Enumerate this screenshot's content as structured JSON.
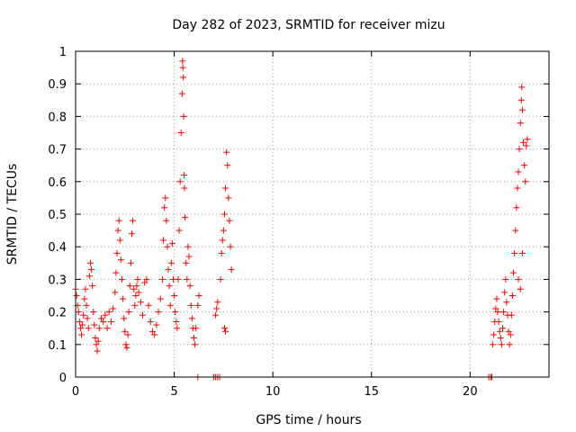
{
  "chart_data": {
    "type": "scatter",
    "title": "Day 282 of 2023, SRMTID for receiver mizu",
    "xlabel": "GPS time / hours",
    "ylabel": "SRMTID / TECUs",
    "xlim": [
      0,
      24
    ],
    "ylim": [
      0,
      1
    ],
    "xticks": [
      0,
      5,
      10,
      15,
      20
    ],
    "xtick_labels": [
      "0",
      "5",
      "10",
      "15",
      "20"
    ],
    "yticks": [
      0,
      0.1,
      0.2,
      0.3,
      0.4,
      0.5,
      0.6,
      0.7,
      0.8,
      0.9,
      1
    ],
    "ytick_labels": [
      "0",
      "0.1",
      "0.2",
      "0.3",
      "0.4",
      "0.5",
      "0.6",
      "0.7",
      "0.8",
      "0.9",
      "1"
    ],
    "grid": true,
    "marker": "+",
    "color": "#ff0000",
    "series": [
      {
        "name": "SRMTID",
        "points": [
          [
            0.0,
            0.27
          ],
          [
            0.05,
            0.25
          ],
          [
            0.1,
            0.22
          ],
          [
            0.15,
            0.2
          ],
          [
            0.2,
            0.17
          ],
          [
            0.25,
            0.15
          ],
          [
            0.3,
            0.13
          ],
          [
            0.35,
            0.16
          ],
          [
            0.4,
            0.19
          ],
          [
            0.45,
            0.24
          ],
          [
            0.5,
            0.27
          ],
          [
            0.55,
            0.22
          ],
          [
            0.6,
            0.18
          ],
          [
            0.65,
            0.15
          ],
          [
            0.7,
            0.31
          ],
          [
            0.75,
            0.35
          ],
          [
            0.8,
            0.33
          ],
          [
            0.85,
            0.28
          ],
          [
            0.9,
            0.2
          ],
          [
            0.95,
            0.16
          ],
          [
            1.0,
            0.12
          ],
          [
            1.05,
            0.1
          ],
          [
            1.1,
            0.08
          ],
          [
            1.15,
            0.11
          ],
          [
            1.2,
            0.15
          ],
          [
            1.3,
            0.18
          ],
          [
            1.4,
            0.17
          ],
          [
            1.5,
            0.19
          ],
          [
            1.6,
            0.15
          ],
          [
            1.7,
            0.2
          ],
          [
            1.8,
            0.17
          ],
          [
            1.9,
            0.21
          ],
          [
            2.0,
            0.26
          ],
          [
            2.05,
            0.32
          ],
          [
            2.1,
            0.38
          ],
          [
            2.15,
            0.45
          ],
          [
            2.2,
            0.48
          ],
          [
            2.25,
            0.42
          ],
          [
            2.3,
            0.36
          ],
          [
            2.35,
            0.3
          ],
          [
            2.4,
            0.24
          ],
          [
            2.45,
            0.18
          ],
          [
            2.5,
            0.14
          ],
          [
            2.55,
            0.1
          ],
          [
            2.6,
            0.09
          ],
          [
            2.65,
            0.13
          ],
          [
            2.7,
            0.2
          ],
          [
            2.75,
            0.28
          ],
          [
            2.8,
            0.35
          ],
          [
            2.85,
            0.44
          ],
          [
            2.9,
            0.48
          ],
          [
            2.95,
            0.27
          ],
          [
            3.0,
            0.22
          ],
          [
            3.05,
            0.25
          ],
          [
            3.1,
            0.28
          ],
          [
            3.15,
            0.3
          ],
          [
            3.2,
            0.26
          ],
          [
            3.3,
            0.23
          ],
          [
            3.4,
            0.19
          ],
          [
            3.5,
            0.29
          ],
          [
            3.6,
            0.3
          ],
          [
            3.7,
            0.22
          ],
          [
            3.8,
            0.17
          ],
          [
            3.9,
            0.14
          ],
          [
            4.0,
            0.13
          ],
          [
            4.1,
            0.16
          ],
          [
            4.2,
            0.2
          ],
          [
            4.3,
            0.24
          ],
          [
            4.4,
            0.3
          ],
          [
            4.45,
            0.42
          ],
          [
            4.5,
            0.52
          ],
          [
            4.55,
            0.55
          ],
          [
            4.6,
            0.48
          ],
          [
            4.65,
            0.4
          ],
          [
            4.7,
            0.33
          ],
          [
            4.75,
            0.28
          ],
          [
            4.8,
            0.22
          ],
          [
            4.85,
            0.35
          ],
          [
            4.9,
            0.41
          ],
          [
            4.95,
            0.3
          ],
          [
            5.0,
            0.25
          ],
          [
            5.05,
            0.2
          ],
          [
            5.1,
            0.17
          ],
          [
            5.15,
            0.15
          ],
          [
            5.2,
            0.3
          ],
          [
            5.25,
            0.45
          ],
          [
            5.3,
            0.6
          ],
          [
            5.35,
            0.75
          ],
          [
            5.4,
            0.87
          ],
          [
            5.42,
            0.97
          ],
          [
            5.44,
            0.95
          ],
          [
            5.46,
            0.92
          ],
          [
            5.48,
            0.8
          ],
          [
            5.5,
            0.62
          ],
          [
            5.52,
            0.58
          ],
          [
            5.55,
            0.49
          ],
          [
            5.6,
            0.35
          ],
          [
            5.65,
            0.3
          ],
          [
            5.7,
            0.4
          ],
          [
            5.75,
            0.37
          ],
          [
            5.8,
            0.28
          ],
          [
            5.85,
            0.22
          ],
          [
            5.9,
            0.18
          ],
          [
            5.95,
            0.15
          ],
          [
            6.0,
            0.12
          ],
          [
            6.05,
            0.1
          ],
          [
            6.1,
            0.15
          ],
          [
            6.2,
            0.22
          ],
          [
            6.25,
            0.25
          ],
          [
            6.2,
            0.0
          ],
          [
            7.0,
            0.0
          ],
          [
            7.1,
            0.0
          ],
          [
            7.2,
            0.0
          ],
          [
            7.3,
            0.0
          ],
          [
            7.1,
            0.19
          ],
          [
            7.15,
            0.21
          ],
          [
            7.2,
            0.23
          ],
          [
            7.35,
            0.3
          ],
          [
            7.4,
            0.38
          ],
          [
            7.45,
            0.42
          ],
          [
            7.5,
            0.45
          ],
          [
            7.55,
            0.5
          ],
          [
            7.6,
            0.58
          ],
          [
            7.65,
            0.69
          ],
          [
            7.7,
            0.65
          ],
          [
            7.75,
            0.55
          ],
          [
            7.8,
            0.48
          ],
          [
            7.85,
            0.4
          ],
          [
            7.9,
            0.33
          ],
          [
            7.55,
            0.15
          ],
          [
            7.6,
            0.14
          ],
          [
            20.95,
            0.0
          ],
          [
            21.05,
            0.0
          ],
          [
            21.1,
            0.0
          ],
          [
            21.15,
            0.1
          ],
          [
            21.2,
            0.13
          ],
          [
            21.25,
            0.17
          ],
          [
            21.3,
            0.21
          ],
          [
            21.35,
            0.24
          ],
          [
            21.4,
            0.2
          ],
          [
            21.45,
            0.17
          ],
          [
            21.5,
            0.14
          ],
          [
            21.55,
            0.12
          ],
          [
            21.6,
            0.1
          ],
          [
            21.65,
            0.15
          ],
          [
            21.7,
            0.2
          ],
          [
            21.75,
            0.26
          ],
          [
            21.8,
            0.3
          ],
          [
            21.85,
            0.23
          ],
          [
            21.9,
            0.19
          ],
          [
            21.95,
            0.14
          ],
          [
            22.0,
            0.1
          ],
          [
            22.05,
            0.13
          ],
          [
            22.1,
            0.19
          ],
          [
            22.15,
            0.25
          ],
          [
            22.2,
            0.32
          ],
          [
            22.25,
            0.38
          ],
          [
            22.3,
            0.45
          ],
          [
            22.35,
            0.52
          ],
          [
            22.4,
            0.58
          ],
          [
            22.45,
            0.63
          ],
          [
            22.5,
            0.7
          ],
          [
            22.55,
            0.78
          ],
          [
            22.6,
            0.85
          ],
          [
            22.62,
            0.89
          ],
          [
            22.65,
            0.82
          ],
          [
            22.7,
            0.72
          ],
          [
            22.75,
            0.65
          ],
          [
            22.8,
            0.6
          ],
          [
            22.85,
            0.71
          ],
          [
            22.9,
            0.73
          ],
          [
            22.45,
            0.3
          ],
          [
            22.55,
            0.27
          ],
          [
            22.65,
            0.38
          ]
        ]
      }
    ]
  }
}
